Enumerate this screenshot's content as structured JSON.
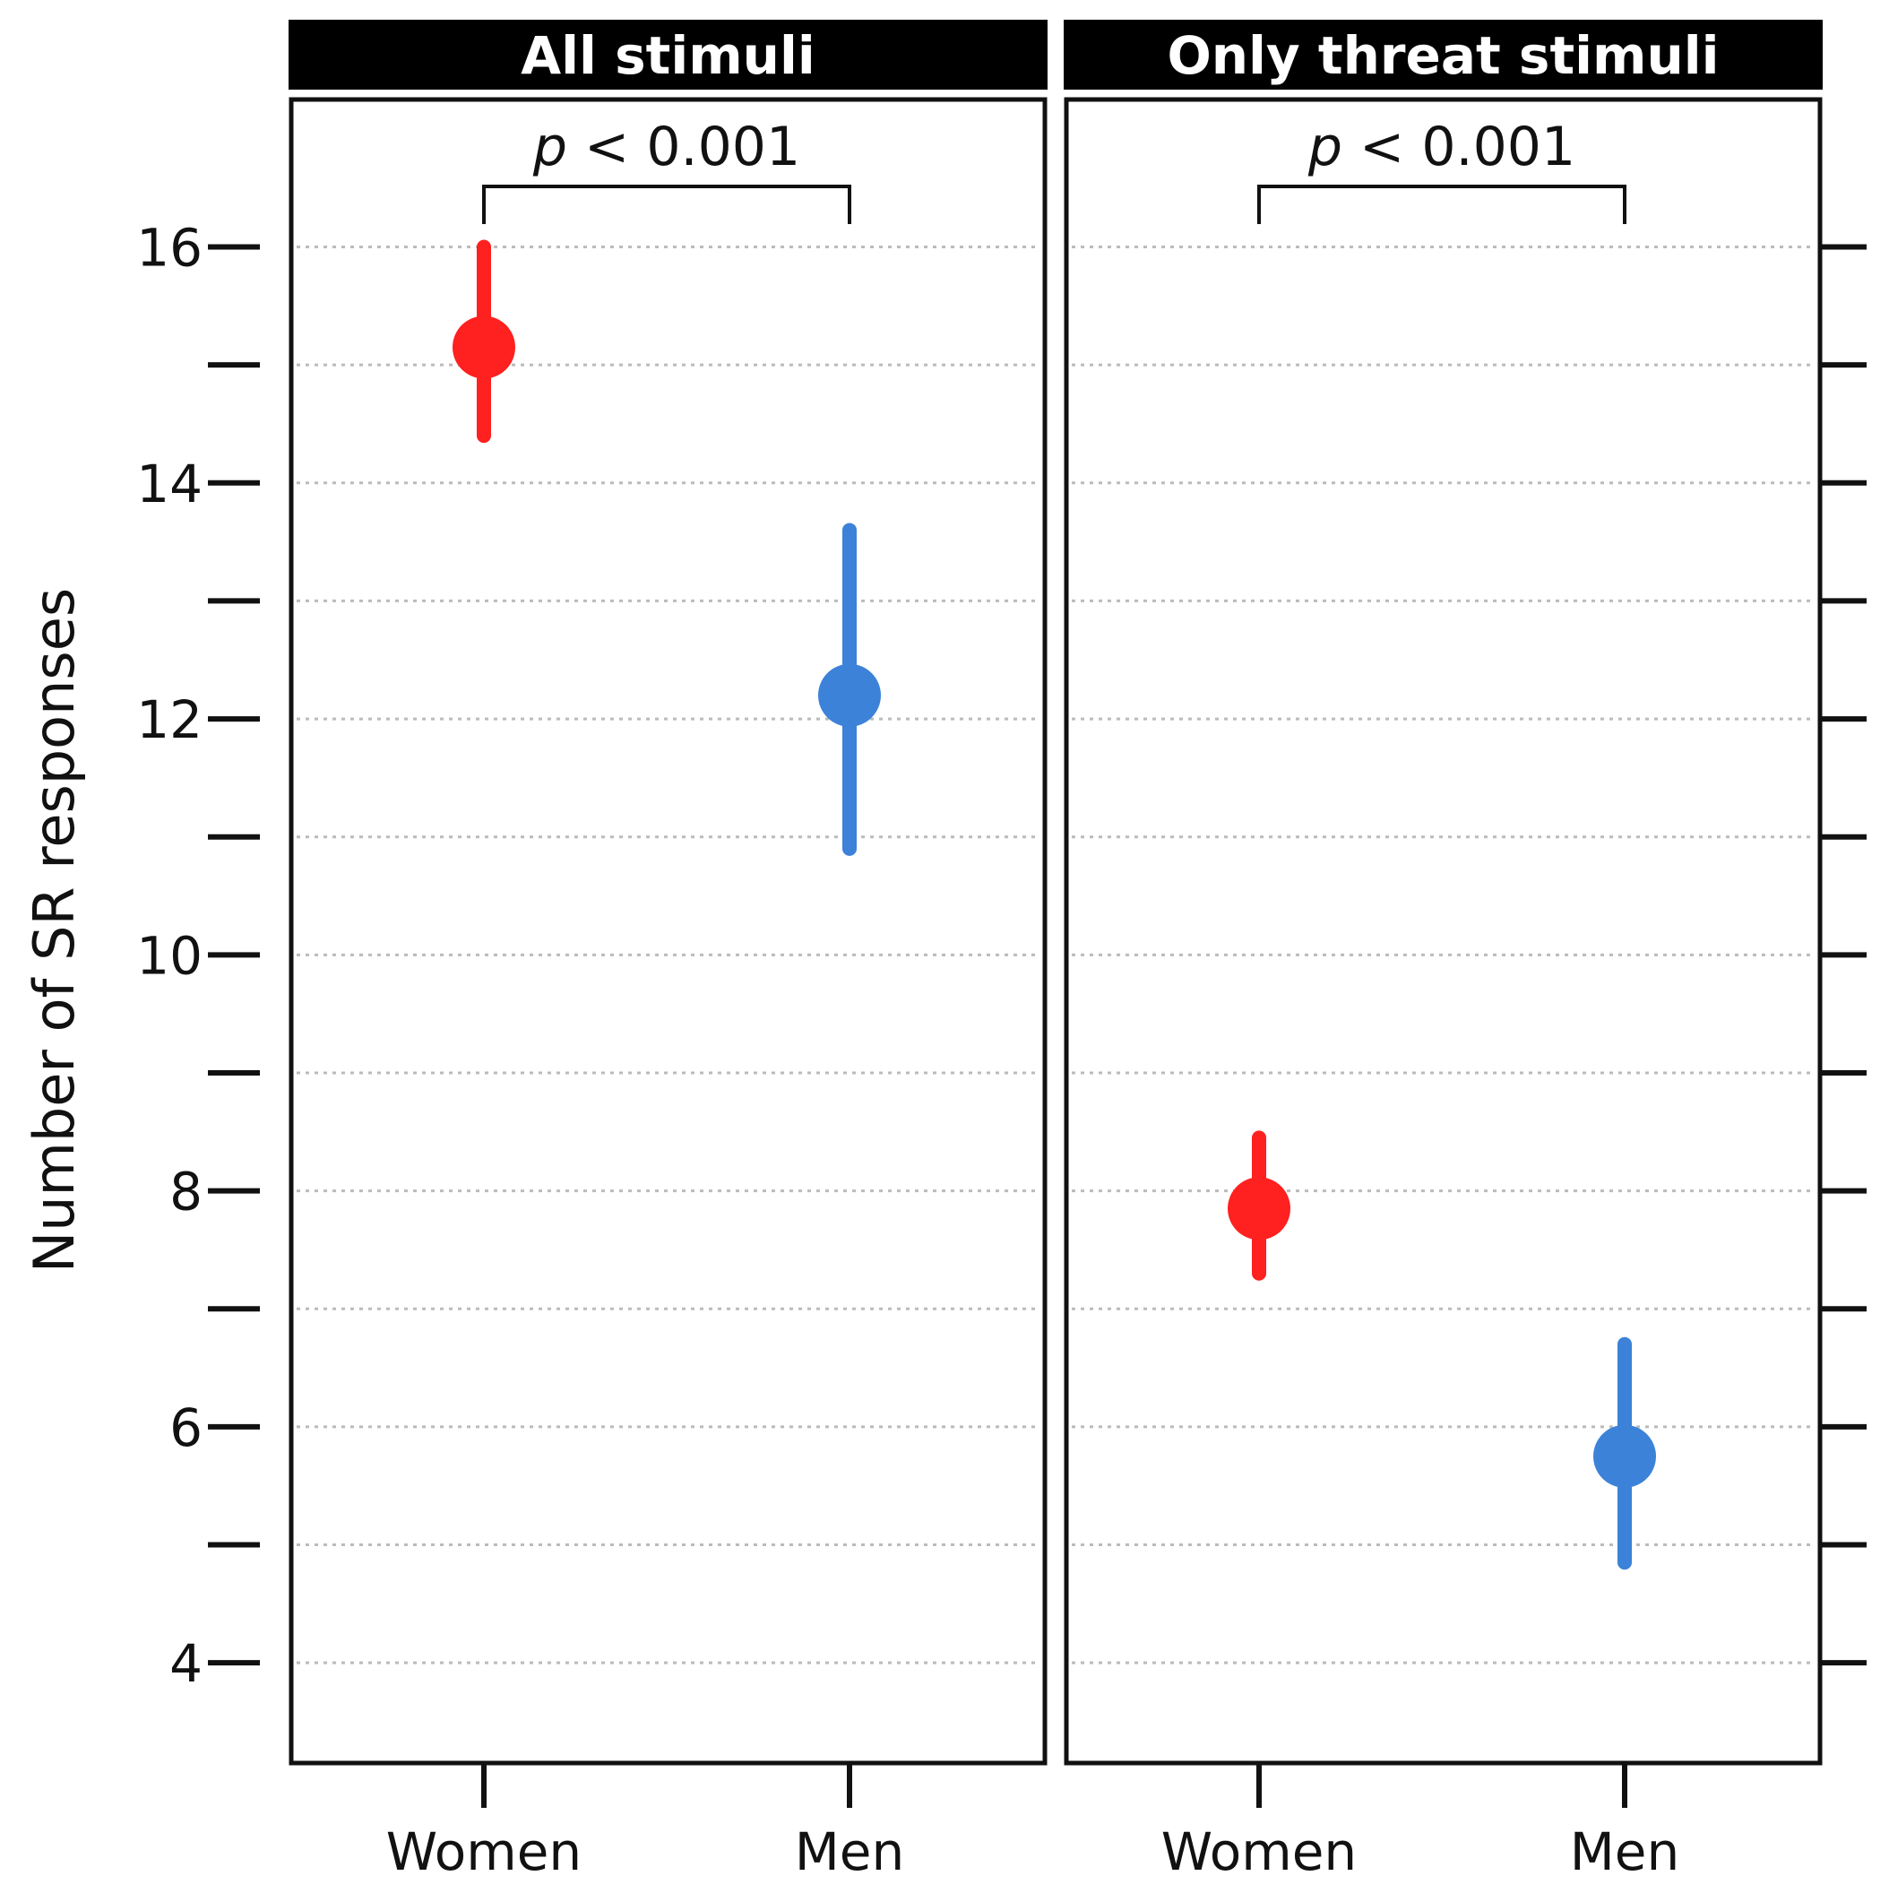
{
  "chart_data": {
    "type": "scatter",
    "subtype": "point-range (mean with interval) in two facet panels",
    "ylabel": "Number of SR responses",
    "xlabel": "",
    "ylim": [
      3.15,
      17.25
    ],
    "y_ticks": [
      4,
      6,
      8,
      10,
      12,
      14,
      16
    ],
    "y_minor_gridlines": [
      5,
      7,
      9,
      11,
      13,
      15
    ],
    "grid": "dotted horizontal at every integer",
    "categories": [
      "Women",
      "Men"
    ],
    "colors": {
      "Women": "#ff2020",
      "Men": "#3c82d8",
      "frame": "#111111",
      "strip": "#000000",
      "grid": "#bbbbbb"
    },
    "panels": [
      {
        "title": "All stimuli",
        "significance": {
          "p_italic": "p",
          "p_rest": " < 0.001",
          "between": [
            "Women",
            "Men"
          ]
        },
        "points": [
          {
            "category": "Women",
            "mean": 15.15,
            "lower": 14.4,
            "upper": 16.0
          },
          {
            "category": "Men",
            "mean": 12.2,
            "lower": 10.9,
            "upper": 13.6
          }
        ]
      },
      {
        "title": "Only threat stimuli",
        "significance": {
          "p_italic": "p",
          "p_rest": " < 0.001",
          "between": [
            "Women",
            "Men"
          ]
        },
        "points": [
          {
            "category": "Women",
            "mean": 7.85,
            "lower": 7.3,
            "upper": 8.45
          },
          {
            "category": "Men",
            "mean": 5.75,
            "lower": 4.85,
            "upper": 6.7
          }
        ]
      }
    ]
  }
}
